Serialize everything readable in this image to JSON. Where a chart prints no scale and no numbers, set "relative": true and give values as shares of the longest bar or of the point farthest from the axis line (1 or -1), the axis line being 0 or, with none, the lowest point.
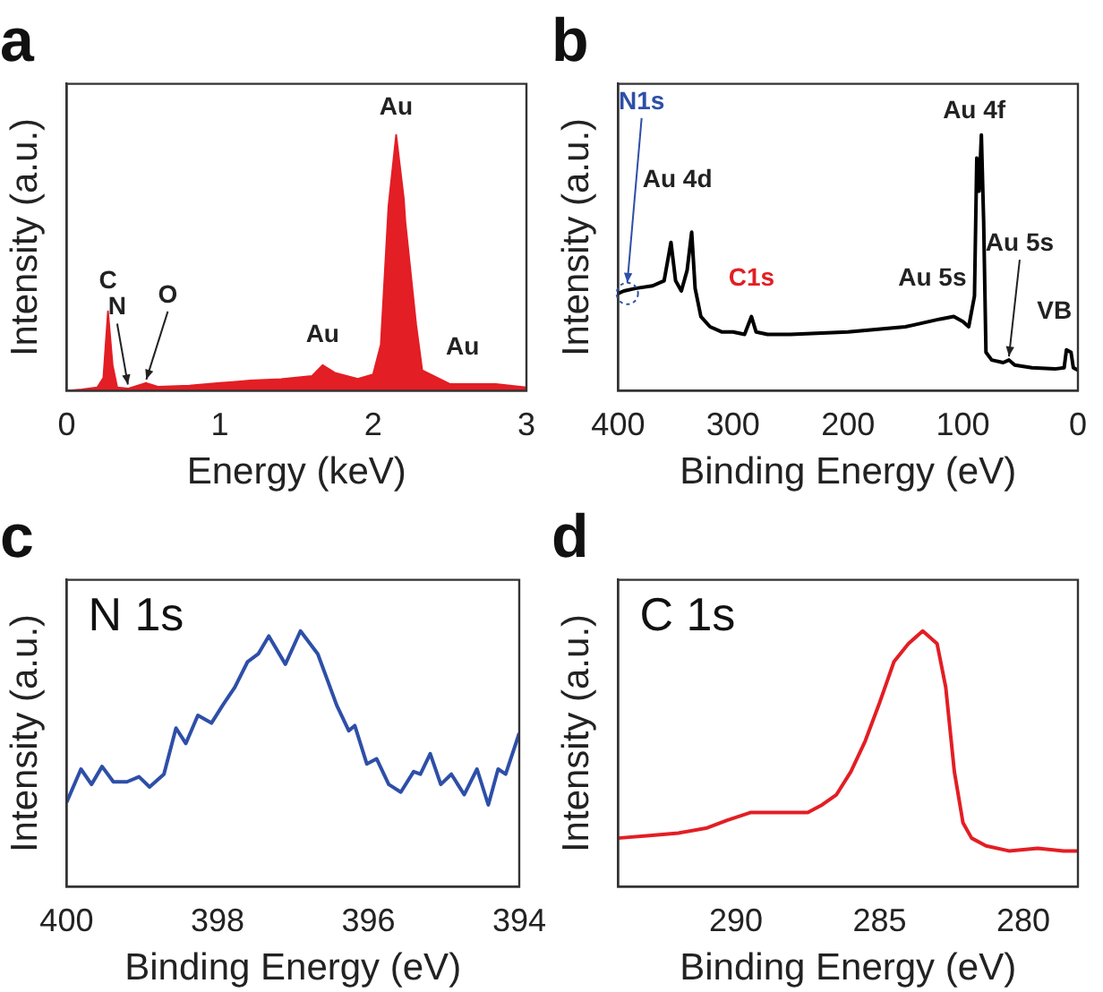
{
  "chart_data": [
    {
      "type": "area",
      "title": "a",
      "xlabel": "Energy (keV)",
      "ylabel": "Intensity (a.u.)",
      "relative": true,
      "xlim": [
        0,
        3
      ],
      "xticks": [
        0,
        1,
        2,
        3
      ],
      "annotations": [
        {
          "text": "C",
          "x": 0.27,
          "y": 0.31
        },
        {
          "text": "N",
          "x": 0.4,
          "y": 0.01
        },
        {
          "text": "O",
          "x": 0.52,
          "y": 0.03
        },
        {
          "text": "Au",
          "x": 1.67,
          "y": 0.1
        },
        {
          "text": "Au",
          "x": 2.15,
          "y": 1
        },
        {
          "text": "Au",
          "x": 2.42,
          "y": 0.05
        }
      ],
      "series": [
        {
          "color": "#e31e24",
          "x": [
            0,
            0.1,
            0.2,
            0.24,
            0.27,
            0.3,
            0.33,
            0.4,
            0.52,
            0.6,
            0.8,
            1.0,
            1.2,
            1.4,
            1.6,
            1.67,
            1.75,
            1.9,
            2.0,
            2.05,
            2.1,
            2.15,
            2.2,
            2.21,
            2.28,
            2.32,
            2.42,
            2.5,
            2.8,
            3.0
          ],
          "values": [
            0,
            0.005,
            0.013,
            0.05,
            0.31,
            0.1,
            0.013,
            0.008,
            0.03,
            0.015,
            0.02,
            0.03,
            0.04,
            0.045,
            0.057,
            0.1,
            0.07,
            0.046,
            0.064,
            0.18,
            0.72,
            1,
            0.75,
            0.66,
            0.26,
            0.08,
            0.05,
            0.026,
            0.026,
            0.013
          ]
        }
      ]
    },
    {
      "type": "line",
      "title": "b",
      "xlabel": "Binding Energy (eV)",
      "ylabel": "Intensity (a.u.)",
      "relative": true,
      "xlim": [
        400,
        0
      ],
      "xticks": [
        400,
        300,
        200,
        100,
        0
      ],
      "annotations": [
        {
          "text": "N1s",
          "x": 392,
          "y": 0.38
        },
        {
          "text": "Au 4d",
          "x": 336,
          "y": 0.62
        },
        {
          "text": "C1s",
          "x": 284,
          "y": 0.29
        },
        {
          "text": "Au 5s",
          "x": 108,
          "y": 0.29
        },
        {
          "text": "Au 4f",
          "x": 84,
          "y": 1
        },
        {
          "text": "Au 5s",
          "x": 60,
          "y": 0.12
        },
        {
          "text": "VB",
          "x": 8,
          "y": 0.16
        }
      ],
      "series": [
        {
          "color": "#000000",
          "x": [
            400,
            395,
            385,
            370,
            360,
            354,
            350,
            345,
            340,
            336,
            333,
            328,
            320,
            310,
            300,
            290,
            284,
            280,
            270,
            250,
            200,
            150,
            120,
            108,
            100,
            95,
            90,
            88,
            86,
            84,
            82,
            80,
            75,
            65,
            60,
            55,
            40,
            20,
            12,
            10,
            6,
            4,
            0
          ],
          "values": [
            0.38,
            0.39,
            0.4,
            0.41,
            0.43,
            0.58,
            0.43,
            0.39,
            0.47,
            0.62,
            0.4,
            0.29,
            0.25,
            0.23,
            0.23,
            0.22,
            0.29,
            0.23,
            0.22,
            0.22,
            0.23,
            0.25,
            0.28,
            0.29,
            0.27,
            0.25,
            0.37,
            0.91,
            0.78,
            1,
            0.66,
            0.15,
            0.12,
            0.11,
            0.12,
            0.1,
            0.09,
            0.085,
            0.09,
            0.16,
            0.15,
            0.09,
            0.08
          ]
        }
      ]
    },
    {
      "type": "line",
      "title": "c",
      "xlabel": "Binding Energy (eV)",
      "ylabel": "Intensity (a.u.)",
      "relative": true,
      "xlim": [
        400,
        394
      ],
      "xticks": [
        400,
        398,
        396,
        394
      ],
      "annotations": [
        "N 1s"
      ],
      "series": [
        {
          "color": "#2e4fa8",
          "x": [
            400,
            399.81,
            399.67,
            399.53,
            399.38,
            399.2,
            399.04,
            398.9,
            398.71,
            398.55,
            398.42,
            398.26,
            398.08,
            397.93,
            397.77,
            397.6,
            397.46,
            397.32,
            397.1,
            396.9,
            396.67,
            396.42,
            396.26,
            396.18,
            396.02,
            395.89,
            395.73,
            395.57,
            395.4,
            395.31,
            395.18,
            395.04,
            394.9,
            394.73,
            394.56,
            394.41,
            394.28,
            394.18,
            394
          ],
          "values": [
            0.33,
            0.46,
            0.4,
            0.47,
            0.41,
            0.41,
            0.43,
            0.39,
            0.44,
            0.62,
            0.56,
            0.67,
            0.64,
            0.71,
            0.78,
            0.88,
            0.91,
            0.98,
            0.87,
            1,
            0.91,
            0.71,
            0.61,
            0.63,
            0.48,
            0.5,
            0.4,
            0.37,
            0.45,
            0.44,
            0.52,
            0.4,
            0.44,
            0.36,
            0.46,
            0.32,
            0.46,
            0.44,
            0.6
          ]
        }
      ]
    },
    {
      "type": "line",
      "title": "d",
      "xlabel": "Binding Energy (eV)",
      "ylabel": "Intensity (a.u.)",
      "relative": true,
      "xlim": [
        294.1,
        278.1
      ],
      "xticks": [
        290,
        285,
        280
      ],
      "annotations": [
        "C 1s"
      ],
      "series": [
        {
          "color": "#e31e24",
          "x": [
            294.1,
            293,
            292,
            291,
            290.3,
            289.5,
            289,
            288,
            287.5,
            287,
            286.5,
            286,
            285.5,
            285,
            284.5,
            284,
            283.5,
            283,
            282.7,
            282.4,
            282.1,
            281.8,
            281.3,
            280.5,
            279.5,
            278.6,
            278.1
          ],
          "values": [
            0.19,
            0.2,
            0.21,
            0.23,
            0.26,
            0.29,
            0.29,
            0.29,
            0.29,
            0.32,
            0.36,
            0.45,
            0.57,
            0.72,
            0.88,
            0.95,
            1,
            0.95,
            0.78,
            0.45,
            0.25,
            0.19,
            0.16,
            0.14,
            0.15,
            0.14,
            0.14
          ]
        }
      ]
    }
  ]
}
